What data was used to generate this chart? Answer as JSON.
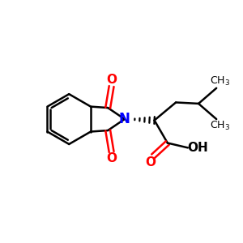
{
  "bg_color": "#ffffff",
  "line_color": "#000000",
  "n_color": "#0000ff",
  "o_color": "#ff0000",
  "line_width": 1.8,
  "figsize": [
    3.0,
    3.0
  ],
  "dpi": 100,
  "xlim": [
    0,
    10
  ],
  "ylim": [
    0,
    10
  ]
}
